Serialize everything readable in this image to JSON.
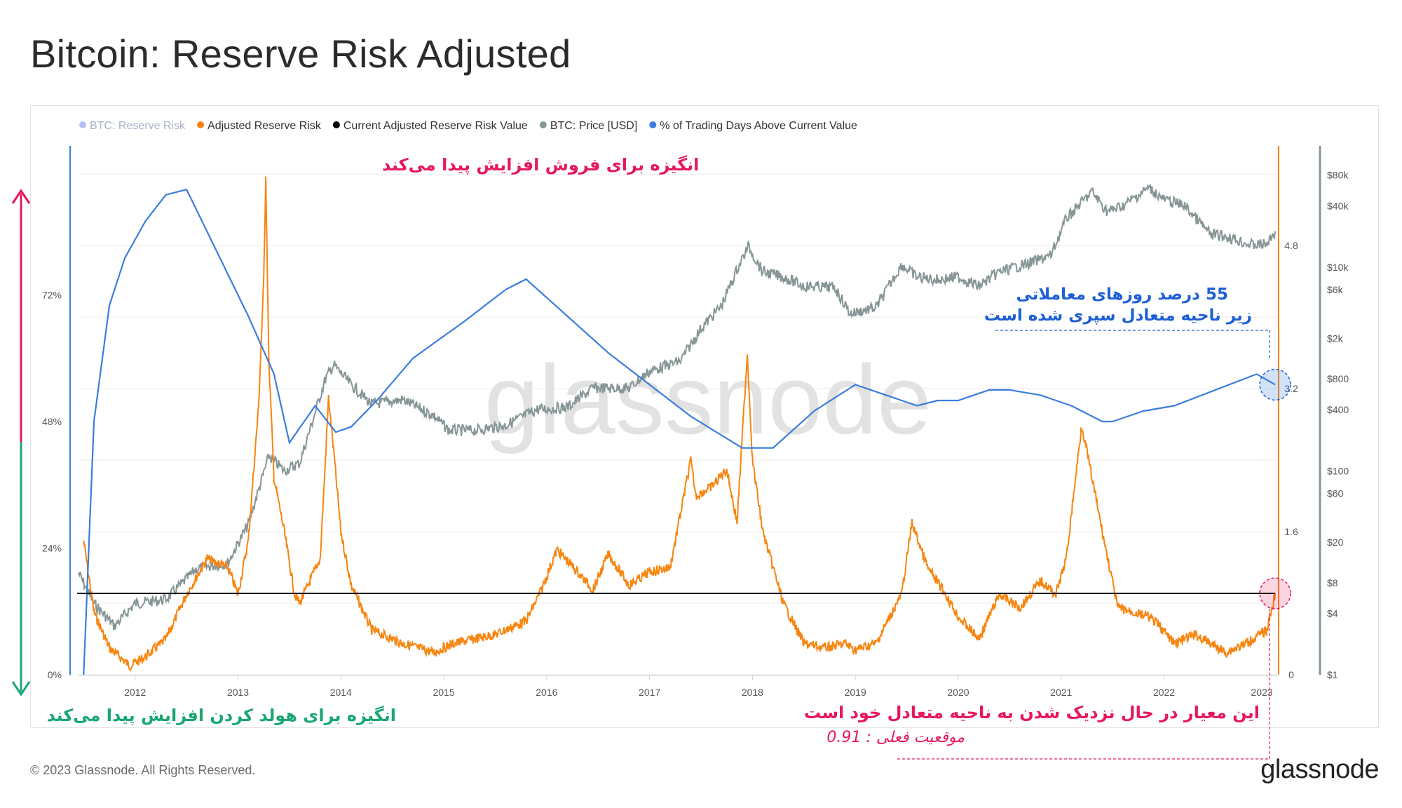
{
  "title": "Bitcoin: Reserve Risk Adjusted",
  "footer": {
    "copyright": "© 2023 Glassnode. All Rights Reserved.",
    "logo": "glassnode"
  },
  "watermark": "glassnode",
  "colors": {
    "reserve_risk": "#7b8cf0",
    "adjusted_reserve_risk": "#f7850f",
    "current_value": "#000000",
    "price": "#869596",
    "trading_days_pct": "#3b7ddd",
    "sell_accent": "#e8175d",
    "hold_accent": "#1aa772",
    "blue_ann": "#1d5fd6"
  },
  "legend": [
    {
      "label": "BTC: Reserve Risk",
      "color": "#7b8cf0",
      "muted": true
    },
    {
      "label": "Adjusted Reserve Risk",
      "color": "#f7850f",
      "muted": false
    },
    {
      "label": "Current Adjusted Reserve Risk Value",
      "color": "#000000",
      "muted": false
    },
    {
      "label": "BTC: Price [USD]",
      "color": "#869596",
      "muted": false
    },
    {
      "label": "% of Trading Days Above Current Value",
      "color": "#3b7ddd",
      "muted": false
    }
  ],
  "annotations": {
    "sell": "انگیزه برای فروش افزایش پیدا می‌کند",
    "hold": "انگیزه برای هولد کردن افزایش پیدا می‌کند",
    "pct_line1": "55 درصد روزهای معاملاتی",
    "pct_line2": "زیر ناحیه متعادل سپری شده است",
    "approach": "این معیار در حال نزدیک شدن به ناحیه متعادل خود است",
    "current": "موقعیت فعلی : 0.91"
  },
  "chart_data": [
    {
      "type": "line",
      "name": "Adjusted Reserve Risk",
      "title": "Bitcoin: Reserve Risk Adjusted",
      "x_range": [
        2011.45,
        2023.1
      ],
      "ylim": [
        0,
        5.9
      ],
      "yticks": [
        "0",
        "1.6",
        "3.2",
        "4.8"
      ],
      "xticks": [
        "2012",
        "2013",
        "2014",
        "2015",
        "2016",
        "2017",
        "2018",
        "2019",
        "2020",
        "2021",
        "2022",
        "2023"
      ],
      "x": [
        2011.5,
        2011.6,
        2011.75,
        2011.95,
        2012.1,
        2012.3,
        2012.5,
        2012.7,
        2012.9,
        2013.0,
        2013.1,
        2013.2,
        2013.25,
        2013.27,
        2013.3,
        2013.35,
        2013.45,
        2013.55,
        2013.6,
        2013.8,
        2013.88,
        2013.93,
        2014.0,
        2014.1,
        2014.3,
        2014.6,
        2014.9,
        2015.1,
        2015.5,
        2015.8,
        2015.95,
        2016.1,
        2016.3,
        2016.45,
        2016.6,
        2016.8,
        2017.0,
        2017.2,
        2017.4,
        2017.45,
        2017.6,
        2017.75,
        2017.85,
        2017.95,
        2018.0,
        2018.1,
        2018.3,
        2018.5,
        2018.7,
        2018.9,
        2019.0,
        2019.2,
        2019.45,
        2019.55,
        2019.7,
        2019.85,
        2020.0,
        2020.2,
        2020.4,
        2020.6,
        2020.8,
        2020.95,
        2021.05,
        2021.2,
        2021.3,
        2021.4,
        2021.55,
        2021.7,
        2021.85,
        2021.95,
        2022.1,
        2022.3,
        2022.45,
        2022.6,
        2022.8,
        2023.0,
        2023.08
      ],
      "values": [
        1.5,
        0.7,
        0.3,
        0.1,
        0.2,
        0.4,
        0.9,
        1.3,
        1.2,
        0.9,
        1.5,
        3.0,
        4.4,
        5.6,
        3.5,
        2.2,
        1.6,
        0.9,
        0.8,
        1.3,
        3.1,
        2.5,
        1.6,
        1.0,
        0.5,
        0.35,
        0.25,
        0.35,
        0.45,
        0.6,
        0.95,
        1.4,
        1.15,
        0.95,
        1.35,
        1.0,
        1.15,
        1.2,
        2.4,
        2.0,
        2.1,
        2.3,
        1.7,
        3.6,
        2.4,
        1.6,
        0.8,
        0.35,
        0.3,
        0.35,
        0.28,
        0.35,
        0.9,
        1.7,
        1.2,
        0.95,
        0.65,
        0.4,
        0.9,
        0.75,
        1.05,
        0.9,
        1.3,
        2.8,
        2.2,
        1.6,
        0.75,
        0.7,
        0.65,
        0.55,
        0.35,
        0.45,
        0.35,
        0.25,
        0.35,
        0.5,
        0.91
      ]
    },
    {
      "type": "line",
      "name": "BTC: Price [USD]",
      "scale": "log",
      "yticks": [
        "$1",
        "$4",
        "$8",
        "$20",
        "$60",
        "$100",
        "$400",
        "$800",
        "$2k",
        "$6k",
        "$10k",
        "$40k",
        "$80k"
      ],
      "x": [
        2011.45,
        2011.6,
        2011.8,
        2012.0,
        2012.3,
        2012.6,
        2012.9,
        2013.1,
        2013.3,
        2013.45,
        2013.6,
        2013.85,
        2013.93,
        2014.1,
        2014.3,
        2014.6,
        2014.9,
        2015.05,
        2015.3,
        2015.6,
        2015.9,
        2016.2,
        2016.45,
        2016.8,
        2017.0,
        2017.3,
        2017.5,
        2017.7,
        2017.85,
        2017.96,
        2018.1,
        2018.3,
        2018.5,
        2018.8,
        2018.95,
        2019.2,
        2019.45,
        2019.6,
        2019.8,
        2020.0,
        2020.2,
        2020.4,
        2020.7,
        2020.9,
        2021.05,
        2021.3,
        2021.45,
        2021.6,
        2021.85,
        2022.0,
        2022.2,
        2022.45,
        2022.6,
        2022.85,
        2023.0,
        2023.08
      ],
      "values": [
        10,
        5,
        3,
        5,
        5.5,
        11,
        12.5,
        30,
        140,
        100,
        120,
        800,
        1100,
        700,
        450,
        500,
        350,
        250,
        250,
        280,
        400,
        420,
        650,
        650,
        950,
        1200,
        2500,
        4200,
        9500,
        16000,
        9000,
        8000,
        6500,
        6300,
        3500,
        4000,
        10500,
        8000,
        7500,
        8000,
        6500,
        9000,
        11000,
        13000,
        30000,
        55000,
        35000,
        40000,
        60000,
        46000,
        40000,
        21000,
        20000,
        16500,
        16800,
        22500
      ]
    },
    {
      "type": "line",
      "name": "% of Trading Days Above Current Value",
      "ylim": [
        0,
        100
      ],
      "yticks": [
        "0%",
        "24%",
        "48%",
        "72%"
      ],
      "x": [
        2011.5,
        2011.6,
        2011.75,
        2011.9,
        2012.1,
        2012.3,
        2012.5,
        2012.8,
        2013.1,
        2013.35,
        2013.5,
        2013.75,
        2013.95,
        2014.1,
        2014.35,
        2014.7,
        2015.2,
        2015.6,
        2015.8,
        2016.2,
        2016.6,
        2017.0,
        2017.4,
        2017.9,
        2018.2,
        2018.6,
        2019.0,
        2019.3,
        2019.6,
        2019.8,
        2020.0,
        2020.3,
        2020.5,
        2020.8,
        2021.1,
        2021.4,
        2021.5,
        2021.8,
        2022.1,
        2022.5,
        2022.9,
        2023.08
      ],
      "values": [
        0,
        48,
        70,
        79,
        86,
        91,
        92,
        80,
        68,
        57,
        44,
        51,
        46,
        47,
        52,
        60,
        67,
        73,
        75,
        68,
        61,
        55,
        49,
        43,
        43,
        50,
        55,
        53,
        51,
        52,
        52,
        54,
        54,
        53,
        51,
        48,
        48,
        50,
        51,
        54,
        57,
        55
      ]
    },
    {
      "type": "line",
      "name": "Current Adjusted Reserve Risk Value",
      "value": 0.91,
      "style": "horizontal"
    }
  ]
}
